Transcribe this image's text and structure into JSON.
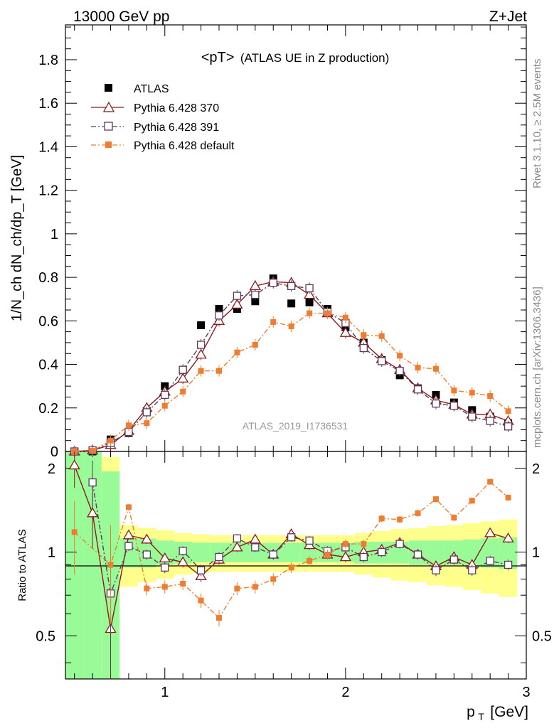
{
  "header": {
    "left": "13000 GeV pp",
    "right": "Z+Jet"
  },
  "side_labels": {
    "rivet": "Rivet 3.1.10, ≥ 2.5M events",
    "mcplots": "mcplots.cern.ch [arXiv:1306.3436]"
  },
  "chart_data": {
    "type": "scatter",
    "title_main": "<pT>",
    "title_sub": "(ATLAS UE in Z production)",
    "watermark": "ATLAS_2019_I1736531",
    "xlabel": "p",
    "xlabel_sub": "T",
    "xlabel_unit": "[GeV]",
    "ylabel": "1/N_ch dN_ch/dp_T [GeV]",
    "ratio_ylabel": "Ratio to ATLAS",
    "xlim": [
      0.45,
      3.0
    ],
    "ylim": [
      0,
      1.96
    ],
    "ratio_ylim": [
      0.35,
      2.3
    ],
    "x_ticks": [
      "1",
      "2",
      "3"
    ],
    "y_ticks": [
      "0",
      "0.2",
      "0.4",
      "0.6",
      "0.8",
      "1",
      "1.2",
      "1.4",
      "1.6",
      "1.8"
    ],
    "ratio_ticks": [
      "0.5",
      "1",
      "2"
    ],
    "legend": [
      "ATLAS",
      "Pythia 6.428 370",
      "Pythia 6.428 391",
      "Pythia 6.428 default"
    ],
    "x": [
      0.5,
      0.6,
      0.7,
      0.8,
      0.9,
      1.0,
      1.1,
      1.2,
      1.3,
      1.4,
      1.5,
      1.6,
      1.7,
      1.8,
      1.9,
      2.0,
      2.1,
      2.2,
      2.3,
      2.4,
      2.5,
      2.6,
      2.7,
      2.8,
      2.9
    ],
    "series": [
      {
        "name": "ATLAS",
        "color": "#000000",
        "values": [
          0.0,
          0.0,
          0.055,
          0.085,
          0.185,
          0.3,
          0.375,
          0.58,
          0.655,
          0.655,
          0.69,
          0.795,
          0.68,
          0.685,
          0.655,
          0.57,
          0.5,
          0.42,
          0.35,
          0.29,
          0.26,
          0.225,
          0.19,
          0.16,
          0.13
        ]
      },
      {
        "name": "Pythia 6.428 370",
        "color": "#8b1a1a",
        "values": [
          0.0,
          0.005,
          0.03,
          0.095,
          0.2,
          0.275,
          0.335,
          0.445,
          0.6,
          0.675,
          0.76,
          0.78,
          0.775,
          0.72,
          0.635,
          0.545,
          0.5,
          0.425,
          0.375,
          0.29,
          0.235,
          0.215,
          0.17,
          0.17,
          0.14
        ]
      },
      {
        "name": "Pythia 6.428 391",
        "color": "#5e3a5e",
        "values": [
          0.0,
          0.005,
          0.04,
          0.09,
          0.18,
          0.26,
          0.375,
          0.49,
          0.625,
          0.715,
          0.72,
          0.775,
          0.76,
          0.75,
          0.64,
          0.59,
          0.475,
          0.415,
          0.37,
          0.285,
          0.22,
          0.21,
          0.16,
          0.14,
          0.115
        ]
      },
      {
        "name": "Pythia 6.428 default",
        "color": "#f07c30",
        "values": [
          0.0,
          0.003,
          0.05,
          0.12,
          0.13,
          0.21,
          0.275,
          0.37,
          0.37,
          0.455,
          0.49,
          0.595,
          0.575,
          0.635,
          0.635,
          0.615,
          0.535,
          0.53,
          0.44,
          0.385,
          0.38,
          0.28,
          0.27,
          0.255,
          0.185
        ]
      }
    ],
    "ratio_series": [
      {
        "name": "Pythia 6.428 370",
        "values": [
          2.05,
          1.38,
          0.53,
          1.15,
          1.11,
          0.95,
          0.92,
          0.82,
          0.94,
          1.04,
          1.11,
          0.98,
          1.16,
          1.06,
          0.98,
          0.96,
          1.0,
          1.02,
          1.08,
          0.98,
          0.89,
          0.96,
          0.9,
          1.17,
          1.12
        ]
      },
      {
        "name": "Pythia 6.428 391",
        "values": [
          0.0,
          1.78,
          0.71,
          1.05,
          0.98,
          0.88,
          1.01,
          0.86,
          0.96,
          1.12,
          1.04,
          0.98,
          1.13,
          1.1,
          1.01,
          1.04,
          0.96,
          1.0,
          1.07,
          0.98,
          0.86,
          0.94,
          0.86,
          0.93,
          0.9
        ]
      },
      {
        "name": "Pythia 6.428 default",
        "values": [
          1.18,
          0.0,
          0.9,
          1.45,
          0.74,
          0.75,
          0.77,
          0.67,
          0.58,
          0.74,
          0.75,
          0.8,
          0.88,
          0.93,
          0.98,
          1.07,
          1.07,
          1.32,
          1.31,
          1.38,
          1.55,
          1.33,
          1.53,
          1.79,
          1.57
        ]
      }
    ],
    "ratio_band_inner": [
      1.6,
      1.6,
      0.95,
      0.12,
      0.12,
      0.1,
      0.09,
      0.08,
      0.08,
      0.08,
      0.08,
      0.08,
      0.08,
      0.08,
      0.08,
      0.08,
      0.09,
      0.09,
      0.09,
      0.1,
      0.1,
      0.1,
      0.11,
      0.12,
      0.13
    ],
    "ratio_band_outer": [
      1.6,
      1.6,
      1.2,
      0.25,
      0.22,
      0.2,
      0.17,
      0.16,
      0.15,
      0.15,
      0.15,
      0.15,
      0.15,
      0.15,
      0.15,
      0.15,
      0.17,
      0.19,
      0.21,
      0.22,
      0.24,
      0.25,
      0.27,
      0.29,
      0.31
    ]
  }
}
